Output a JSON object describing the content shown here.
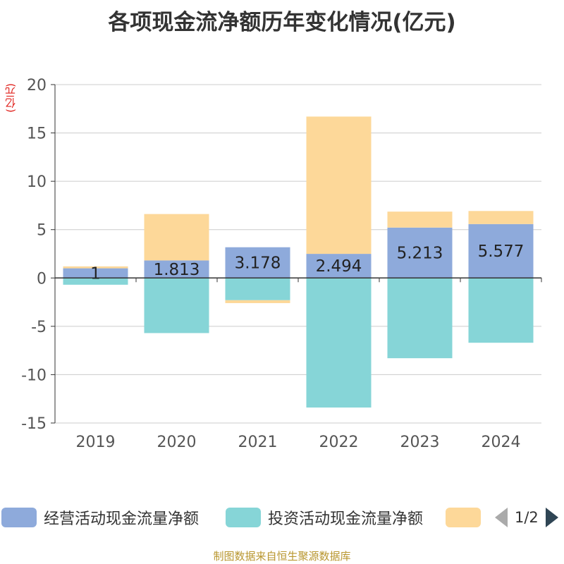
{
  "chart_data": {
    "type": "bar",
    "stacked": true,
    "title": "各项现金流净额历年变化情况(亿元)",
    "ylabel": "(亿元)",
    "xlabel": "",
    "categories": [
      "2019",
      "2020",
      "2021",
      "2022",
      "2023",
      "2024"
    ],
    "ylim": [
      -15,
      20
    ],
    "yticks": [
      20,
      15,
      10,
      5,
      0,
      -5,
      -10,
      -15
    ],
    "grid": true,
    "series": [
      {
        "name": "经营活动现金流量净额",
        "color": "#8eaadb",
        "values": [
          1,
          1.813,
          3.178,
          2.494,
          5.213,
          5.577
        ],
        "labels": [
          "1",
          "1.813",
          "3.178",
          "2.494",
          "5.213",
          "5.577"
        ]
      },
      {
        "name": "投资活动现金流量净额",
        "color": "#86d5d7",
        "values": [
          -0.7,
          -5.7,
          -2.3,
          -13.4,
          -8.3,
          -6.7
        ]
      },
      {
        "name": "",
        "color": "#fdd899",
        "values": [
          0.2,
          4.8,
          -0.3,
          14.2,
          1.65,
          1.35
        ]
      }
    ],
    "legend_position": "bottom",
    "legend_page": "1/2"
  },
  "source": "制图数据来自恒生聚源数据库"
}
